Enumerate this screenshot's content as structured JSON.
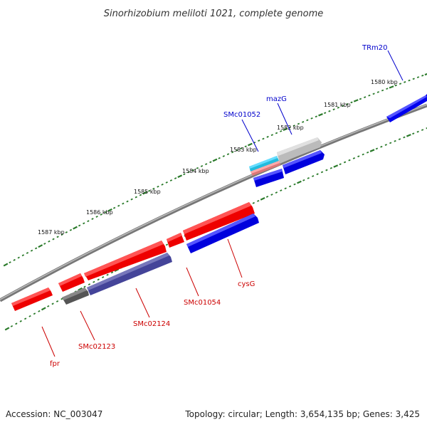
{
  "title": "Sinorhizobium meliloti 1021, complete genome",
  "footer": {
    "accession": "Accession: NC_003047",
    "summary": "Topology: circular; Length: 3,654,135 bp; Genes: 3,425"
  },
  "colors": {
    "forward_gene": "#ff0000",
    "reverse_gene": "#0000ff",
    "backbone": "#888888",
    "tick": "#2a7a2a",
    "dark_gray_gene": "#666666",
    "light_gray_gene": "#cccccc",
    "cyan_gene": "#33ccee",
    "pink_gene": "#ee8888",
    "slate_gene": "#5555aa"
  },
  "ticks": [
    "1580 kbp",
    "1581 kbp",
    "1582 kbp",
    "1583 kbp",
    "1584 kbp",
    "1585 kbp",
    "1586 kbp",
    "1587 kbp"
  ],
  "gene_labels": {
    "trm20": "TRm20",
    "mazg": "mazG",
    "smc01052": "SMc01052",
    "cysg": "cysG",
    "smc01054": "SMc01054",
    "smc02124": "SMc02124",
    "smc02123": "SMc02123",
    "fpr": "fpr"
  }
}
